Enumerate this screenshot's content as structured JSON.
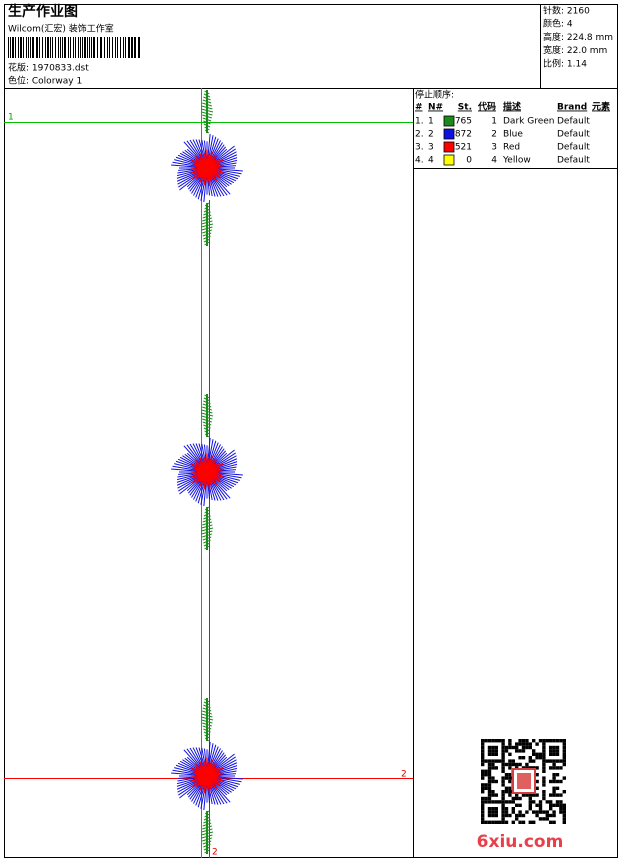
{
  "header": {
    "title": "生产作业图",
    "studio": "Wilcom(汇宏) 装饰工作室",
    "design": "花版: 1970833.dst",
    "colorway": "色位: Colorway 1"
  },
  "info": [
    "针数: 2160",
    "颜色: 4",
    "高度: 224.8 mm",
    "宽度: 22.0 mm",
    "比例: 1.14"
  ],
  "stop_sequence": {
    "title": "停止顺序:",
    "columns": [
      "#",
      "N#",
      "St.",
      "代码",
      "描述",
      "Brand",
      "元素"
    ],
    "rows": [
      {
        "index": "1.",
        "needle": "1",
        "color": "#1a8a1a",
        "stitches": "765",
        "code": "1",
        "description": "Dark Green",
        "brand": "Default"
      },
      {
        "index": "2.",
        "needle": "2",
        "color": "#1010e0",
        "stitches": "872",
        "code": "2",
        "description": "Blue",
        "brand": "Default"
      },
      {
        "index": "3.",
        "needle": "3",
        "color": "#ff0000",
        "stitches": "521",
        "code": "3",
        "description": "Red",
        "brand": "Default"
      },
      {
        "index": "4.",
        "needle": "4",
        "color": "#ffff00",
        "stitches": "0",
        "code": "4",
        "description": "Yellow",
        "brand": "Default"
      }
    ]
  },
  "guides": {
    "green_label": "1",
    "red_label": "2",
    "red_vertical_label": "2"
  },
  "watermark": "6xiu.com"
}
